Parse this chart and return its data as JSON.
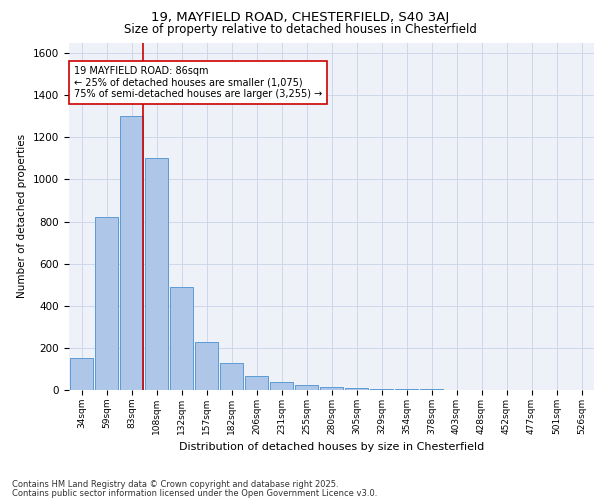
{
  "title1": "19, MAYFIELD ROAD, CHESTERFIELD, S40 3AJ",
  "title2": "Size of property relative to detached houses in Chesterfield",
  "xlabel": "Distribution of detached houses by size in Chesterfield",
  "ylabel": "Number of detached properties",
  "categories": [
    "34sqm",
    "59sqm",
    "83sqm",
    "108sqm",
    "132sqm",
    "157sqm",
    "182sqm",
    "206sqm",
    "231sqm",
    "255sqm",
    "280sqm",
    "305sqm",
    "329sqm",
    "354sqm",
    "378sqm",
    "403sqm",
    "428sqm",
    "452sqm",
    "477sqm",
    "501sqm",
    "526sqm"
  ],
  "values": [
    150,
    820,
    1300,
    1100,
    490,
    230,
    130,
    65,
    38,
    25,
    15,
    10,
    7,
    5,
    3,
    2,
    2,
    2,
    1,
    1,
    1
  ],
  "bar_color": "#aec6e8",
  "bar_edge_color": "#5b9bd5",
  "grid_color": "#c8d4e8",
  "background_color": "#eef2f8",
  "vline_color": "#cc0000",
  "annotation_text": "19 MAYFIELD ROAD: 86sqm\n← 25% of detached houses are smaller (1,075)\n75% of semi-detached houses are larger (3,255) →",
  "annotation_box_color": "#ffffff",
  "annotation_box_edge": "#cc0000",
  "vline_index": 2,
  "ylim": [
    0,
    1650
  ],
  "footer1": "Contains HM Land Registry data © Crown copyright and database right 2025.",
  "footer2": "Contains public sector information licensed under the Open Government Licence v3.0."
}
